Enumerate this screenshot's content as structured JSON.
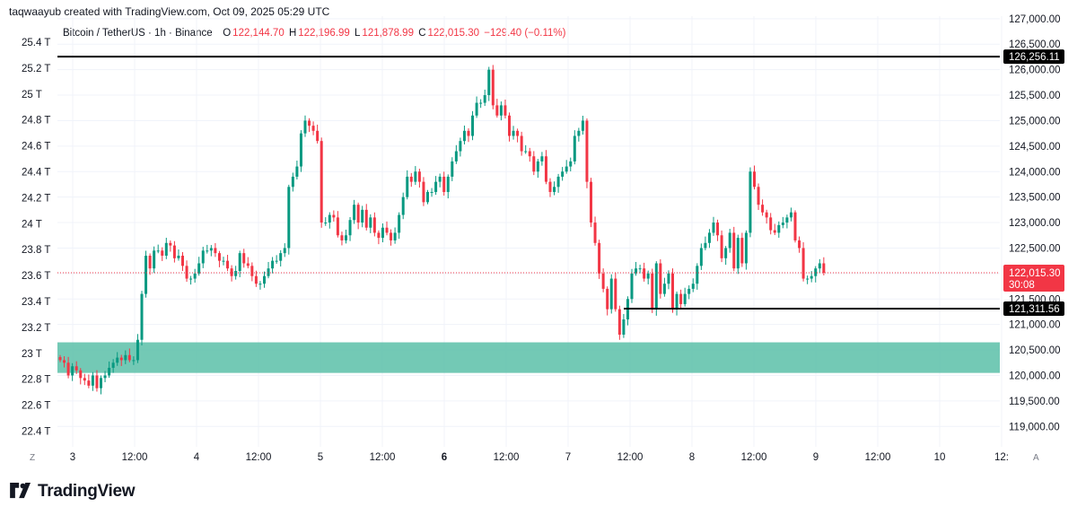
{
  "attribution": "taqwaayub created with TradingView.com, Oct 09, 2025 05:29 UTC",
  "legend": {
    "symbol": "Bitcoin / TetherUS · 1h · Binance",
    "open_label": "O",
    "open": "122,144.70",
    "high_label": "H",
    "high": "122,196.99",
    "low_label": "L",
    "low": "121,878.99",
    "close_label": "C",
    "close": "122,015.30",
    "change": "−129.40 (−0.11%)"
  },
  "brand": {
    "name": "TradingView"
  },
  "corner_labels": {
    "left": "Z",
    "right": "A"
  },
  "colors": {
    "up": "#089981",
    "down": "#f23645",
    "zone": "#5bbfa8",
    "grid": "#f0f3fa",
    "price_line": "#f23645"
  },
  "chart_data": {
    "type": "candlestick",
    "title": "Bitcoin / TetherUS · 1h · Binance",
    "right_axis": {
      "ticks": [
        "127,000.00",
        "126,500.00",
        "126,000.00",
        "125,500.00",
        "125,000.00",
        "124,500.00",
        "124,000.00",
        "123,500.00",
        "123,000.00",
        "122,500.00",
        "122,000.00",
        "121,500.00",
        "121,000.00",
        "120,500.00",
        "120,000.00",
        "119,500.00",
        "119,000.00"
      ],
      "range": [
        118600,
        127050
      ]
    },
    "left_axis": {
      "ticks": [
        "25.4 T",
        "25.2 T",
        "25 T",
        "24.8 T",
        "24.6 T",
        "24.4 T",
        "24.2 T",
        "24 T",
        "23.8 T",
        "23.6 T",
        "23.4 T",
        "23.2 T",
        "23 T",
        "22.8 T",
        "22.6 T",
        "22.4 T"
      ]
    },
    "x_axis": {
      "ticks": [
        "3",
        "12:00",
        "4",
        "12:00",
        "5",
        "12:00",
        "6",
        "12:00",
        "7",
        "12:00",
        "8",
        "12:00",
        "9",
        "12:00",
        "10",
        "12:"
      ],
      "bold_tick": "6"
    },
    "horizontal_lines": [
      {
        "price": 126256.11,
        "label": "126,256.11"
      },
      {
        "price": 121311.56,
        "label": "121,311.56"
      }
    ],
    "current_price": {
      "price": 122015.3,
      "label": "122,015.30",
      "countdown": "30:08"
    },
    "zone": {
      "top": 120650,
      "bottom": 120050
    },
    "closes": [
      120300,
      120250,
      120000,
      120180,
      120100,
      119950,
      119900,
      119800,
      120000,
      119750,
      119950,
      120000,
      120150,
      120250,
      120350,
      120300,
      120400,
      120300,
      120300,
      120700,
      121600,
      122350,
      122100,
      122450,
      122450,
      122350,
      122600,
      122550,
      122300,
      122350,
      122150,
      121900,
      121900,
      122000,
      122200,
      122450,
      122450,
      122500,
      122400,
      122250,
      122250,
      122100,
      121950,
      122050,
      122400,
      122200,
      122150,
      121950,
      121800,
      121800,
      121950,
      122100,
      122250,
      122250,
      122400,
      122500,
      123700,
      123900,
      124100,
      124750,
      125000,
      124900,
      124800,
      124600,
      123000,
      123000,
      123150,
      123100,
      122750,
      122650,
      122750,
      123050,
      123350,
      123000,
      123250,
      122900,
      123100,
      122800,
      122700,
      122900,
      122800,
      122650,
      122800,
      123150,
      123500,
      123900,
      123800,
      124000,
      123800,
      123400,
      123600,
      123600,
      123800,
      123900,
      123600,
      123900,
      124200,
      124400,
      124600,
      124800,
      124700,
      125100,
      125350,
      125350,
      125500,
      126000,
      125300,
      125100,
      125300,
      125100,
      124700,
      124800,
      124700,
      124400,
      124400,
      124300,
      124000,
      124200,
      124300,
      123800,
      123600,
      123700,
      123900,
      124000,
      124100,
      124200,
      124700,
      124800,
      125000,
      123800,
      123000,
      122600,
      122000,
      121700,
      121300,
      121900,
      121300,
      120800,
      121100,
      121500,
      122000,
      122100,
      122100,
      121900,
      122000,
      121300,
      122200,
      121600,
      121800,
      122000,
      121300,
      121600,
      121400,
      121600,
      121700,
      121800,
      122150,
      122500,
      122600,
      122800,
      123000,
      122750,
      122300,
      122500,
      122800,
      122100,
      122700,
      122200,
      122800,
      124000,
      123700,
      123350,
      123200,
      123100,
      122850,
      122800,
      122950,
      123000,
      123100,
      123200,
      122650,
      122500,
      121900,
      121900,
      121950,
      122100,
      122200,
      122015
    ]
  }
}
